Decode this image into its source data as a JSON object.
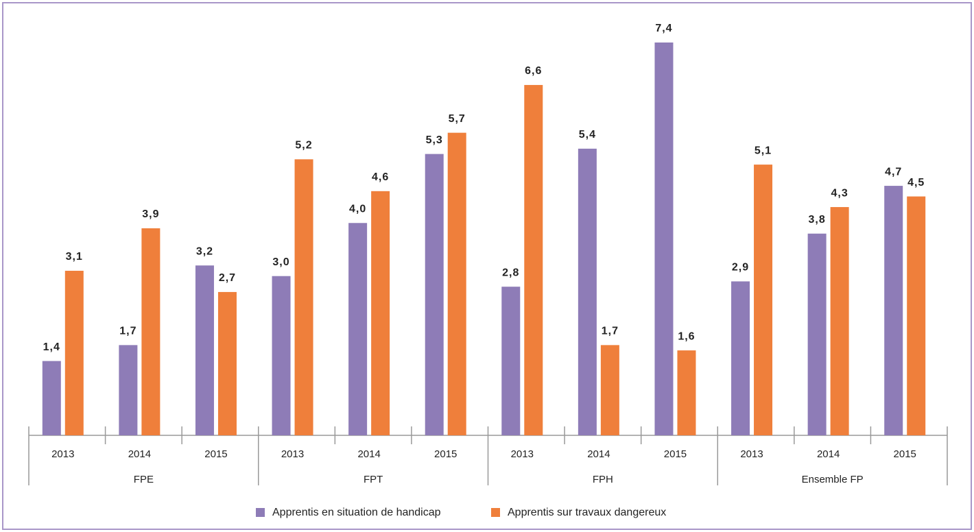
{
  "chart_data": {
    "type": "bar",
    "categories": [
      "2013",
      "2014",
      "2015",
      "2013",
      "2014",
      "2015",
      "2013",
      "2014",
      "2015",
      "2013",
      "2014",
      "2015"
    ],
    "groups": [
      "FPE",
      "FPT",
      "FPH",
      "Ensemble FP"
    ],
    "series": [
      {
        "name": "Apprentis en situation de handicap",
        "color": "#8e7cb7",
        "values": [
          1.4,
          1.7,
          3.2,
          3.0,
          4.0,
          5.3,
          2.8,
          5.4,
          7.4,
          2.9,
          3.8,
          4.7
        ],
        "value_labels": [
          "1,4",
          "1,7",
          "3,2",
          "3,0",
          "4,0",
          "5,3",
          "2,8",
          "5,4",
          "7,4",
          "2,9",
          "3,8",
          "4,7"
        ]
      },
      {
        "name": "Apprentis sur travaux dangereux",
        "color": "#ef7f3b",
        "values": [
          3.1,
          3.9,
          2.7,
          5.2,
          4.6,
          5.7,
          6.6,
          1.7,
          1.6,
          5.1,
          4.3,
          4.5
        ],
        "value_labels": [
          "3,1",
          "3,9",
          "2,7",
          "5,2",
          "4,6",
          "5,7",
          "6,6",
          "1,7",
          "1,6",
          "5,1",
          "4,3",
          "4,5"
        ]
      }
    ]
  }
}
